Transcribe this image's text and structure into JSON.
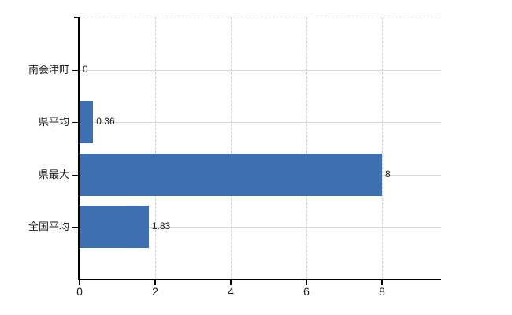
{
  "chart_data": {
    "type": "bar",
    "orientation": "horizontal",
    "title": "",
    "xlabel": "",
    "ylabel": "",
    "categories": [
      "南会津町",
      "県平均",
      "県最大",
      "全国平均"
    ],
    "values": [
      0,
      0.36,
      8,
      1.83
    ],
    "value_labels": [
      "0",
      "0.36",
      "8",
      "1.83"
    ],
    "x_ticks": [
      0,
      2,
      4,
      6,
      8
    ],
    "x_tick_labels": [
      "0",
      "2",
      "4",
      "6",
      "8"
    ],
    "xlim": [
      0,
      9.56
    ],
    "grid": true,
    "legend": "none",
    "colors": {
      "bar": "#3e6fb0",
      "grid_vertical": "#d2d2d2",
      "grid_horizontal": "#d6dbd2",
      "top_border": "#cccccc",
      "axis": "#000000",
      "text": "#1a1a1a",
      "background": "#ffffff"
    }
  }
}
